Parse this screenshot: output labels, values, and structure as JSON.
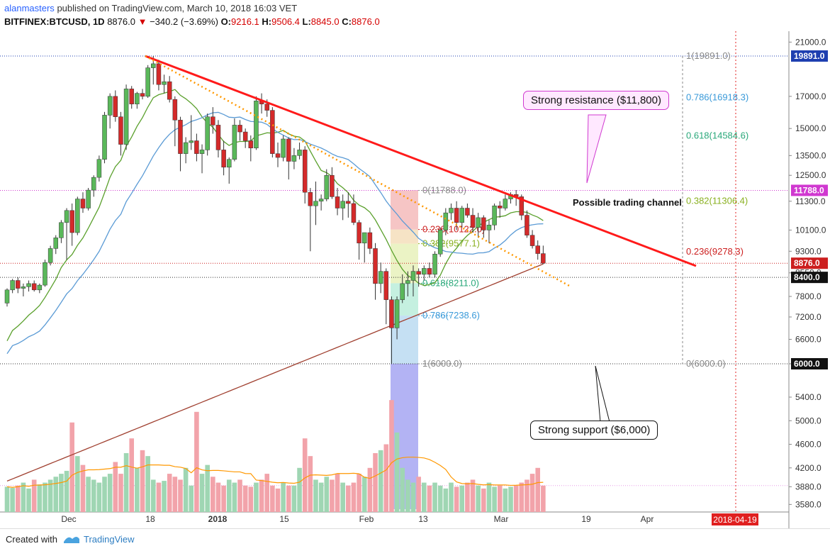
{
  "header": {
    "user": "alanmasters",
    "published": "published on TradingView.com, March 10, 2018 16:03 VET",
    "symbol": "BITFINEX:BTCUSD, 1D",
    "last": "8876.0",
    "change": "−340.2 (−3.69%)",
    "open_label": "O:",
    "open": "9216.1",
    "high_label": "H:",
    "high": "9506.4",
    "low_label": "L:",
    "low": "8845.0",
    "close_label": "C:",
    "close": "8876.0"
  },
  "footer": {
    "created": "Created with",
    "brand": "TradingView"
  },
  "annotations": {
    "resistance": "Strong resistance ($11,800)",
    "support": "Strong support ($6,000)",
    "channel": "Possible trading channel"
  },
  "price_tags": [
    {
      "label": "19891.0",
      "price": 19891,
      "color": "#1e3fb0"
    },
    {
      "label": "11788.0",
      "price": 11788,
      "color": "#d038d0"
    },
    {
      "label": "8876.0",
      "price": 8876,
      "color": "#cc1f1f"
    },
    {
      "label": "8400.0",
      "price": 8400,
      "color": "#111111"
    },
    {
      "label": "6000.0",
      "price": 6000,
      "color": "#111111"
    }
  ],
  "colors": {
    "up": "#26a69a",
    "down": "#e53935",
    "trendline": "#ff1a1a",
    "dotted": "#ff9800",
    "ma_green": "#5aa02c",
    "ma_blue": "#5b9bd5",
    "ma_brown": "#a04030",
    "vol_ma": "#ff9800"
  },
  "chart_data": {
    "type": "candlestick",
    "price_axis": {
      "ticks": [
        3580,
        3880,
        4200,
        4600,
        5000,
        5400,
        6000,
        6600,
        7200,
        7800,
        8550,
        9300,
        10100,
        11300,
        12500,
        13500,
        15000,
        17000,
        21000
      ],
      "scale": "log"
    },
    "time_axis": {
      "ticks": [
        "Dec",
        "18",
        "2018",
        "15",
        "Feb",
        "13",
        "Mar",
        "19",
        "Apr",
        "2018-04-19"
      ]
    },
    "fib_right": [
      {
        "label": "1(19891.0)",
        "price": 19891
      },
      {
        "label": "0.786(16918.3)",
        "price": 16918
      },
      {
        "label": "0.618(14584.6)",
        "price": 14585
      },
      {
        "label": "0.382(11306.4)",
        "price": 11306
      },
      {
        "label": "0.236(9278.3)",
        "price": 9278
      },
      {
        "label": "0(6000.0)",
        "price": 6000
      }
    ],
    "fib_left": [
      {
        "label": "0(11788.0)",
        "price": 11788
      },
      {
        "label": "0.236(10122.0)",
        "price": 10122
      },
      {
        "label": "0.382(9577.1)",
        "price": 9577
      },
      {
        "label": "0.618(8211.0)",
        "price": 8211
      },
      {
        "label": "0.786(7238.6)",
        "price": 7238
      },
      {
        "label": "1(6000.0)",
        "price": 6000
      }
    ],
    "candles": [
      [
        7600,
        8050,
        7500,
        8000
      ],
      [
        8000,
        8350,
        7900,
        8300
      ],
      [
        8300,
        8400,
        7900,
        8050
      ],
      [
        8050,
        8200,
        7800,
        8100
      ],
      [
        8100,
        8300,
        7950,
        8200
      ],
      [
        8200,
        8300,
        7950,
        8000
      ],
      [
        8000,
        8200,
        7900,
        8150
      ],
      [
        8150,
        9000,
        8100,
        8900
      ],
      [
        8900,
        9500,
        8800,
        9400
      ],
      [
        9400,
        9900,
        9200,
        9800
      ],
      [
        9800,
        10500,
        9600,
        10400
      ],
      [
        10400,
        11000,
        9000,
        10900
      ],
      [
        10900,
        11200,
        9500,
        10000
      ],
      [
        10000,
        11500,
        9900,
        11400
      ],
      [
        11400,
        11700,
        10800,
        11000
      ],
      [
        11000,
        11900,
        10900,
        11800
      ],
      [
        11800,
        12500,
        11500,
        12400
      ],
      [
        12400,
        13500,
        12200,
        13300
      ],
      [
        13300,
        16000,
        13100,
        15800
      ],
      [
        15800,
        17200,
        15000,
        17000
      ],
      [
        17000,
        17400,
        15400,
        15700
      ],
      [
        15700,
        16000,
        13500,
        14100
      ],
      [
        14100,
        17800,
        13800,
        17500
      ],
      [
        17500,
        17700,
        16200,
        16500
      ],
      [
        16500,
        17300,
        16200,
        17200
      ],
      [
        17200,
        17500,
        16800,
        17000
      ],
      [
        17000,
        19200,
        16900,
        19000
      ],
      [
        19000,
        19891,
        17800,
        19300
      ],
      [
        19300,
        19600,
        17400,
        17800
      ],
      [
        17800,
        18500,
        17200,
        18000
      ],
      [
        18000,
        18400,
        16600,
        16800
      ],
      [
        16800,
        17000,
        14000,
        15500
      ],
      [
        15500,
        15700,
        12700,
        13600
      ],
      [
        13600,
        14500,
        13100,
        14200
      ],
      [
        14200,
        15800,
        13800,
        14300
      ],
      [
        14300,
        14700,
        13200,
        13600
      ],
      [
        13600,
        14100,
        12600,
        13800
      ],
      [
        13800,
        15900,
        13500,
        15700
      ],
      [
        15700,
        16300,
        14700,
        15200
      ],
      [
        15200,
        15500,
        13400,
        13800
      ],
      [
        13800,
        14300,
        12500,
        12900
      ],
      [
        12900,
        13400,
        12100,
        13300
      ],
      [
        13300,
        15600,
        13200,
        15200
      ],
      [
        15200,
        15500,
        14300,
        14800
      ],
      [
        14800,
        15000,
        13900,
        14300
      ],
      [
        14300,
        14600,
        13200,
        13900
      ],
      [
        13900,
        17000,
        13800,
        16700
      ],
      [
        16700,
        17200,
        15900,
        16500
      ],
      [
        16500,
        16800,
        15700,
        16100
      ],
      [
        16100,
        16300,
        13400,
        13600
      ],
      [
        13600,
        14200,
        12900,
        13400
      ],
      [
        13400,
        14600,
        13200,
        14400
      ],
      [
        14400,
        14500,
        12300,
        13200
      ],
      [
        13200,
        13900,
        12800,
        13500
      ],
      [
        13500,
        14200,
        13300,
        13800
      ],
      [
        13800,
        14000,
        11200,
        11700
      ],
      [
        11700,
        11900,
        9300,
        11100
      ],
      [
        11100,
        12200,
        10300,
        11300
      ],
      [
        11300,
        11600,
        10900,
        11400
      ],
      [
        11400,
        12800,
        11300,
        12500
      ],
      [
        12500,
        12900,
        11400,
        11500
      ],
      [
        11500,
        11900,
        10700,
        11000
      ],
      [
        11000,
        11600,
        10500,
        11300
      ],
      [
        11300,
        11700,
        10600,
        11200
      ],
      [
        11200,
        11600,
        10300,
        10400
      ],
      [
        10400,
        10500,
        9000,
        9600
      ],
      [
        9600,
        10000,
        8900,
        10000
      ],
      [
        10000,
        10200,
        9200,
        9400
      ],
      [
        9400,
        9600,
        7700,
        8200
      ],
      [
        8200,
        8900,
        7900,
        8600
      ],
      [
        8600,
        8700,
        7000,
        7700
      ],
      [
        7700,
        7800,
        6000,
        6900
      ],
      [
        6900,
        7800,
        6600,
        7700
      ],
      [
        7700,
        8500,
        7600,
        8200
      ],
      [
        8200,
        8600,
        7800,
        8300
      ],
      [
        8300,
        8800,
        7800,
        8600
      ],
      [
        8600,
        8700,
        8100,
        8500
      ],
      [
        8500,
        8800,
        8300,
        8700
      ],
      [
        8700,
        8900,
        8400,
        8500
      ],
      [
        8500,
        9300,
        8400,
        9200
      ],
      [
        9200,
        10200,
        9100,
        10100
      ],
      [
        10100,
        11000,
        9900,
        10800
      ],
      [
        10800,
        11200,
        10500,
        11000
      ],
      [
        11000,
        11300,
        10100,
        10400
      ],
      [
        10400,
        11100,
        10200,
        11000
      ],
      [
        11000,
        11200,
        10600,
        10700
      ],
      [
        10700,
        11000,
        10000,
        10200
      ],
      [
        10200,
        10800,
        9800,
        10600
      ],
      [
        10600,
        10700,
        9800,
        10100
      ],
      [
        10100,
        10500,
        9600,
        10300
      ],
      [
        10300,
        11200,
        10100,
        11100
      ],
      [
        11100,
        11300,
        10600,
        11000
      ],
      [
        11000,
        11600,
        10900,
        11400
      ],
      [
        11400,
        11700,
        11200,
        11600
      ],
      [
        11600,
        11800,
        11100,
        11500
      ],
      [
        11500,
        11600,
        10500,
        10700
      ],
      [
        10700,
        10900,
        9800,
        9900
      ],
      [
        9900,
        10100,
        9400,
        9500
      ],
      [
        9500,
        9700,
        9000,
        9216
      ],
      [
        9216,
        9506,
        8845,
        8876
      ]
    ],
    "volume": [
      3880,
      3860,
      3900,
      3950,
      3850,
      4000,
      3920,
      3950,
      4000,
      4050,
      4100,
      4150,
      4970,
      4400,
      4250,
      4050,
      4000,
      3950,
      4050,
      4100,
      4300,
      4100,
      4450,
      4700,
      4200,
      4500,
      4400,
      4000,
      3950,
      3980,
      4100,
      4050,
      4000,
      4200,
      3900,
      5150,
      4100,
      4250,
      4050,
      3950,
      3900,
      4000,
      3950,
      4000,
      3900,
      3880,
      3950,
      4000,
      4100,
      3900,
      3850,
      3950,
      3900,
      3900,
      4200,
      4700,
      4400,
      4000,
      3950,
      4050,
      4000,
      4100,
      3950,
      3900,
      3950,
      4100,
      4050,
      4200,
      4450,
      4500,
      4600,
      5350,
      4800,
      4200,
      4000,
      3950,
      4050,
      3950,
      3900,
      3950,
      3900,
      3850,
      3950,
      3880,
      3900,
      3950,
      4000,
      3900,
      3850,
      3950,
      3880,
      3900,
      3850,
      3880,
      3900,
      3950,
      4000,
      4100,
      4200,
      3900
    ]
  }
}
